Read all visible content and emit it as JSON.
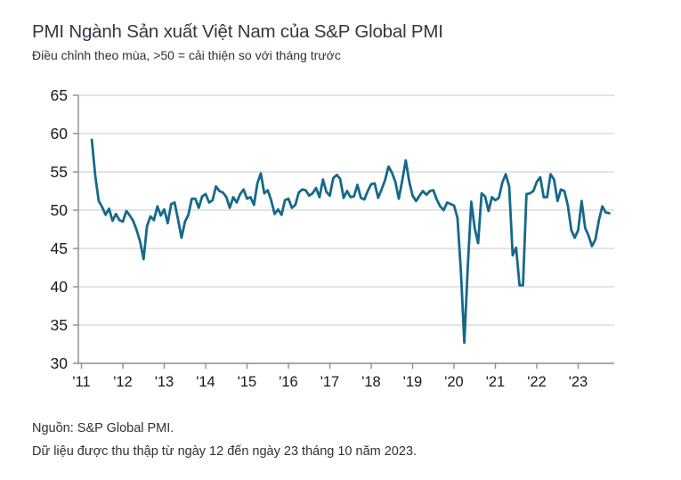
{
  "header": {
    "title": "PMI Ngành Sản xuất Việt Nam của S&P Global PMI",
    "subtitle": "Điều chỉnh theo mùa, >50 = cải thiện so với tháng trước"
  },
  "footer": {
    "source": "Nguồn: S&P Global PMI.",
    "note": "Dữ liệu được thu thập từ ngày 12 đến ngày 23 tháng 10 năm 2023."
  },
  "colors": {
    "line": "#15698a",
    "title_text": "#333744",
    "body_text": "#303030",
    "axis_line": "#8c8c8c",
    "gridline": "#dcdcdc",
    "tick_label": "#1a1a1a"
  },
  "chart_data": {
    "type": "line",
    "title": "PMI Ngành Sản xuất Việt Nam của S&P Global PMI",
    "subtitle": "Điều chỉnh theo mùa, >50 = cải thiện so với tháng trước",
    "xlabel": "",
    "ylabel": "",
    "ylim": [
      30,
      65
    ],
    "y_ticks": [
      30,
      35,
      40,
      45,
      50,
      55,
      60,
      65
    ],
    "x_tick_labels": [
      "'11",
      "'12",
      "'13",
      "'14",
      "'15",
      "'16",
      "'17",
      "'18",
      "'19",
      "'20",
      "'21",
      "'22",
      "'23"
    ],
    "x_start": "2011-04",
    "x_end": "2023-10",
    "x_interval": "month",
    "grid": "horizontal",
    "legend": "none",
    "series": [
      {
        "name": "PMI Ngành Sản xuất Việt Nam",
        "color": "#15698a",
        "values": [
          59.2,
          54.5,
          51.2,
          50.4,
          49.4,
          50.2,
          48.6,
          49.5,
          48.7,
          48.5,
          49.9,
          49.3,
          48.6,
          47.4,
          45.9,
          43.6,
          47.9,
          49.2,
          48.7,
          50.5,
          49.3,
          50.1,
          48.3,
          50.8,
          51.0,
          48.8,
          46.4,
          48.5,
          49.4,
          51.5,
          51.5,
          50.3,
          51.8,
          52.1,
          51.0,
          51.3,
          53.1,
          52.5,
          52.3,
          51.7,
          50.3,
          51.7,
          51.0,
          52.1,
          52.7,
          51.5,
          51.7,
          50.7,
          53.5,
          54.8,
          52.2,
          52.6,
          51.3,
          49.5,
          50.1,
          49.4,
          51.3,
          51.5,
          50.3,
          50.7,
          52.3,
          52.7,
          52.6,
          51.9,
          52.2,
          52.9,
          51.7,
          54.0,
          52.4,
          51.9,
          54.2,
          54.6,
          54.1,
          51.6,
          52.5,
          51.7,
          51.8,
          53.3,
          51.6,
          51.4,
          52.5,
          53.4,
          53.5,
          51.6,
          52.7,
          53.9,
          55.7,
          54.9,
          53.7,
          51.5,
          53.9,
          56.5,
          53.8,
          51.9,
          51.2,
          51.9,
          52.5,
          52.0,
          52.5,
          52.6,
          51.4,
          50.5,
          50.0,
          51.0,
          50.8,
          50.6,
          49.0,
          41.9,
          32.7,
          42.7,
          51.1,
          47.6,
          45.7,
          52.2,
          51.8,
          49.9,
          51.7,
          51.3,
          51.6,
          53.6,
          54.7,
          53.1,
          44.1,
          45.1,
          40.2,
          40.2,
          52.1,
          52.2,
          52.5,
          53.7,
          54.3,
          51.7,
          51.7,
          54.7,
          54.0,
          51.2,
          52.7,
          52.5,
          50.6,
          47.4,
          46.4,
          47.4,
          51.2,
          47.7,
          46.7,
          45.3,
          46.2,
          48.7,
          50.5,
          49.7,
          49.6
        ]
      }
    ]
  }
}
